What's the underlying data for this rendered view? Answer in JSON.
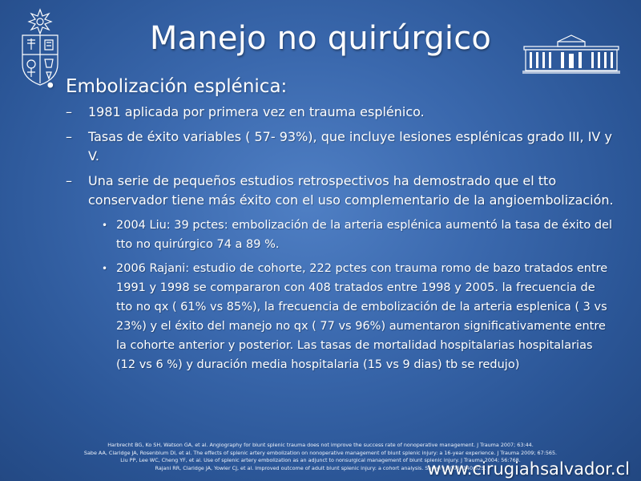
{
  "slide": {
    "title": "Manejo no quirúrgico",
    "heading": "Embolización esplénica:",
    "bullet_mark": "•",
    "dash_mark": "–",
    "points": [
      {
        "text": "1981 aplicada por primera vez en trauma esplénico."
      },
      {
        "text": "Tasas de éxito variables ( 57- 93%), que incluye lesiones esplénicas grado III, IV y V."
      },
      {
        "text": "Una serie de pequeños estudios retrospectivos ha demostrado que el tto conservador tiene más éxito con el uso complementario de la angioembolización."
      }
    ],
    "studies": [
      {
        "text": "2004 Liu: 39 pctes: embolización de la arteria esplénica aumentó la tasa de éxito del tto no quirúrgico 74 a 89 %."
      },
      {
        "text": "2006 Rajani: estudio de cohorte, 222 pctes con trauma romo de bazo tratados entre 1991 y 1998 se compararon con 408 tratados entre 1998 y 2005. la frecuencia de tto no qx ( 61% vs 85%), la frecuencia de embolización de la arteria esplenica ( 3 vs 23%) y el éxito del manejo no qx ( 77 vs 96%) aumentaron significativamente entre la cohorte anterior y posterior. Las tasas de mortalidad hospitalarias hospitalarias (12 vs 6 %) y duración media hospitalaria (15 vs 9 dias) tb se redujo)"
      }
    ],
    "references": [
      "Harbrecht BG, Ko SH, Watson GA, et al. Angiography for blunt splenic trauma does not improve the success rate of nonoperative management. J Trauma 2007; 63:44.",
      "Sabe AA, Claridge JA, Rosenblum DI, et al. The effects of splenic artery embolization on nonoperative management of blunt splenic injury: a 16-year experience. J Trauma 2009; 67:565.",
      "Liu PP, Lee WC, Cheng YF, et al. Use of splenic artery embolization as an adjunct to nonsurgical management of blunt splenic injury. J Trauma 2004; 56:768.",
      "Rajani RR, Claridge JA, Yowler CJ, et al. Improved outcome of adult blunt splenic injury: a cohort analysis. Surgery 2006; 140:625."
    ],
    "website": "www.cirugiahsalvador.cl"
  },
  "colors": {
    "background_center": "#4f7fc4",
    "background_edge": "#224781",
    "text": "#ffffff"
  },
  "icons": {
    "top_left": "university-crest-icon",
    "top_right": "hospital-building-icon"
  }
}
